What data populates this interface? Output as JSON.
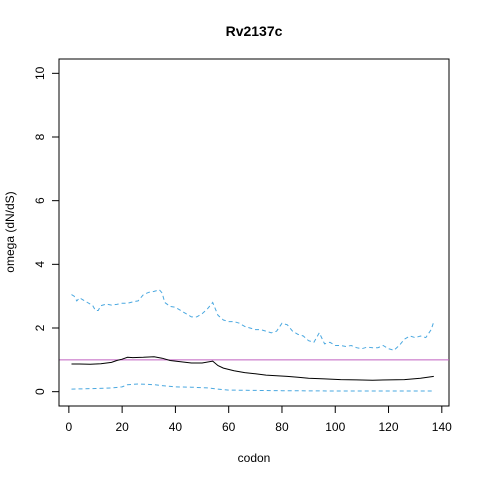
{
  "chart_data": {
    "type": "line",
    "title": "Rv2137c",
    "xlabel": "codon",
    "ylabel": "omega (dN/dS)",
    "xlim": [
      -3.7,
      142.7
    ],
    "ylim": [
      -0.45,
      10.45
    ],
    "xticks": [
      0,
      20,
      40,
      60,
      80,
      100,
      120,
      140
    ],
    "yticks": [
      0,
      2,
      4,
      6,
      8,
      10
    ],
    "grid": false,
    "colors": {
      "upper": "#4aa8e0",
      "mean": "#000000",
      "lower": "#4aa8e0",
      "reference": "#c060c0"
    },
    "reference_line": {
      "y": 1.0
    },
    "series": [
      {
        "key": "upper",
        "style": "dashed",
        "x": [
          1,
          2,
          3,
          4,
          5,
          6,
          7,
          8,
          9,
          10,
          11,
          12,
          14,
          16,
          18,
          20,
          22,
          24,
          26,
          28,
          30,
          32,
          34,
          35,
          36,
          38,
          40,
          42,
          44,
          46,
          48,
          50,
          52,
          54,
          56,
          58,
          60,
          62,
          64,
          66,
          68,
          70,
          72,
          74,
          76,
          78,
          80,
          82,
          84,
          86,
          88,
          90,
          92,
          94,
          96,
          98,
          100,
          102,
          104,
          106,
          108,
          110,
          112,
          114,
          116,
          118,
          120,
          122,
          124,
          126,
          128,
          130,
          132,
          134,
          136,
          137
        ],
        "y": [
          3.05,
          3.0,
          2.85,
          2.95,
          2.9,
          2.85,
          2.8,
          2.75,
          2.7,
          2.55,
          2.55,
          2.7,
          2.75,
          2.72,
          2.74,
          2.78,
          2.78,
          2.82,
          2.85,
          3.05,
          3.12,
          3.15,
          3.2,
          3.1,
          2.8,
          2.68,
          2.65,
          2.55,
          2.45,
          2.35,
          2.35,
          2.45,
          2.6,
          2.8,
          2.4,
          2.25,
          2.2,
          2.2,
          2.15,
          2.05,
          2.0,
          1.95,
          1.95,
          1.9,
          1.85,
          1.9,
          2.15,
          2.1,
          1.9,
          1.8,
          1.75,
          1.6,
          1.55,
          1.85,
          1.5,
          1.55,
          1.45,
          1.45,
          1.42,
          1.45,
          1.38,
          1.35,
          1.4,
          1.38,
          1.38,
          1.45,
          1.35,
          1.3,
          1.45,
          1.65,
          1.75,
          1.7,
          1.75,
          1.7,
          1.95,
          2.2
        ]
      },
      {
        "key": "mean",
        "style": "solid",
        "x": [
          1,
          4,
          8,
          12,
          16,
          18,
          20,
          22,
          24,
          28,
          32,
          35,
          38,
          42,
          46,
          50,
          54,
          56,
          58,
          62,
          66,
          70,
          74,
          78,
          82,
          86,
          90,
          96,
          102,
          108,
          114,
          120,
          126,
          132,
          137
        ],
        "y": [
          0.87,
          0.87,
          0.86,
          0.88,
          0.92,
          0.98,
          1.02,
          1.08,
          1.07,
          1.08,
          1.1,
          1.05,
          0.98,
          0.94,
          0.9,
          0.9,
          0.96,
          0.82,
          0.74,
          0.66,
          0.6,
          0.56,
          0.52,
          0.5,
          0.48,
          0.45,
          0.42,
          0.4,
          0.38,
          0.37,
          0.36,
          0.37,
          0.38,
          0.42,
          0.48
        ]
      },
      {
        "key": "lower",
        "style": "dashed",
        "x": [
          1,
          10,
          16,
          20,
          22,
          26,
          32,
          36,
          40,
          46,
          52,
          56,
          60,
          70,
          80,
          100,
          120,
          137
        ],
        "y": [
          0.08,
          0.1,
          0.12,
          0.15,
          0.22,
          0.24,
          0.22,
          0.18,
          0.15,
          0.14,
          0.12,
          0.08,
          0.05,
          0.04,
          0.03,
          0.02,
          0.02,
          0.02
        ]
      }
    ]
  }
}
